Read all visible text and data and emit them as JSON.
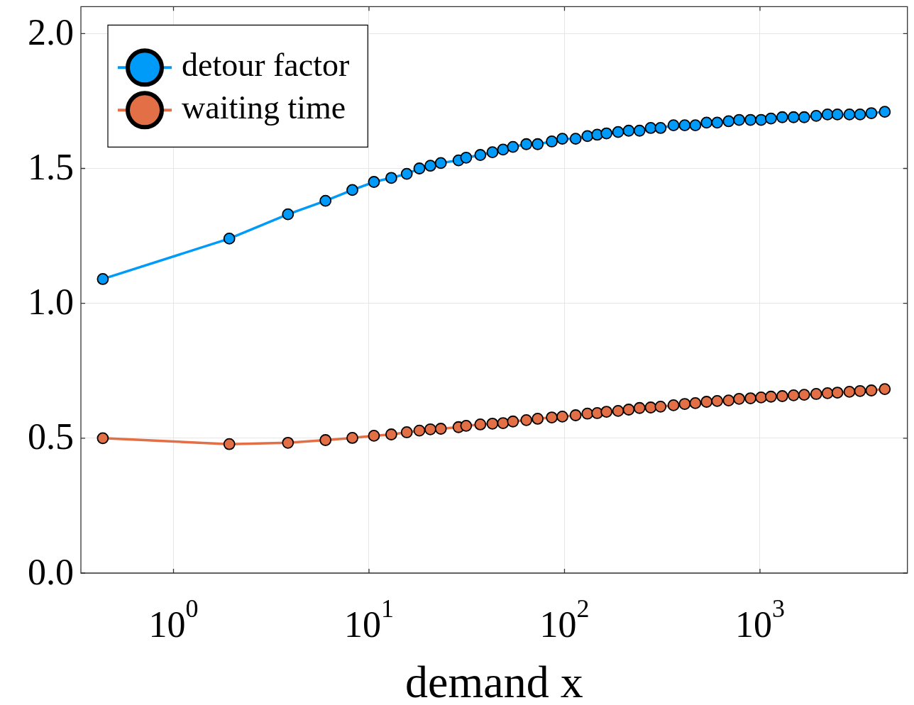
{
  "chart_data": {
    "type": "line",
    "xlabel": "demand x",
    "log": "x",
    "grid": true,
    "legend": "top left",
    "marker": "circle",
    "line_style": "solid",
    "x": [
      0.435,
      1.93,
      3.85,
      5.99,
      8.22,
      10.6,
      13.0,
      15.6,
      18.1,
      20.6,
      23.3,
      28.7,
      31.4,
      37.1,
      42.8,
      48.5,
      54.5,
      63.8,
      72.9,
      86.1,
      97.5,
      114,
      131,
      147,
      164,
      188,
      213,
      242,
      276,
      310,
      361,
      412,
      467,
      533,
      604,
      691,
      782,
      894,
      1013,
      1138,
      1300,
      1485,
      1683,
      1939,
      2215,
      2489,
      2867,
      3249,
      3712,
      4347
    ],
    "xlim": [
      0.336,
      5675
    ],
    "xticks": [
      {
        "value": 1,
        "label": "10$^{0}$"
      },
      {
        "value": 10,
        "label": "10$^{1}$"
      },
      {
        "value": 100,
        "label": "10$^{2}$"
      },
      {
        "value": 1000,
        "label": "10$^{3}$"
      }
    ],
    "ylim": [
      0,
      2.1
    ],
    "yticks": [
      {
        "value": 0,
        "label": "0.0"
      },
      {
        "value": 0.5,
        "label": "0.5"
      },
      {
        "value": 1,
        "label": "1.0"
      },
      {
        "value": 1.5,
        "label": "1.5"
      },
      {
        "value": 2,
        "label": "2.0"
      }
    ],
    "series": [
      {
        "name": "detour factor",
        "color": "#009af9",
        "values": [
          1.09,
          1.24,
          1.33,
          1.38,
          1.42,
          1.45,
          1.465,
          1.48,
          1.5,
          1.51,
          1.52,
          1.53,
          1.54,
          1.55,
          1.56,
          1.57,
          1.58,
          1.59,
          1.59,
          1.6,
          1.61,
          1.61,
          1.62,
          1.625,
          1.63,
          1.635,
          1.64,
          1.64,
          1.65,
          1.65,
          1.66,
          1.66,
          1.66,
          1.67,
          1.67,
          1.675,
          1.68,
          1.68,
          1.68,
          1.685,
          1.69,
          1.69,
          1.69,
          1.695,
          1.7,
          1.7,
          1.7,
          1.7,
          1.705,
          1.71
        ]
      },
      {
        "name": "waiting time",
        "color": "#e26f46",
        "values": [
          0.5,
          0.478,
          0.483,
          0.493,
          0.501,
          0.509,
          0.514,
          0.522,
          0.528,
          0.533,
          0.535,
          0.541,
          0.546,
          0.551,
          0.554,
          0.556,
          0.562,
          0.567,
          0.572,
          0.577,
          0.58,
          0.585,
          0.591,
          0.593,
          0.598,
          0.601,
          0.606,
          0.612,
          0.614,
          0.617,
          0.622,
          0.627,
          0.63,
          0.635,
          0.638,
          0.64,
          0.646,
          0.648,
          0.651,
          0.654,
          0.656,
          0.659,
          0.661,
          0.664,
          0.667,
          0.669,
          0.672,
          0.675,
          0.677,
          0.682
        ]
      }
    ]
  }
}
